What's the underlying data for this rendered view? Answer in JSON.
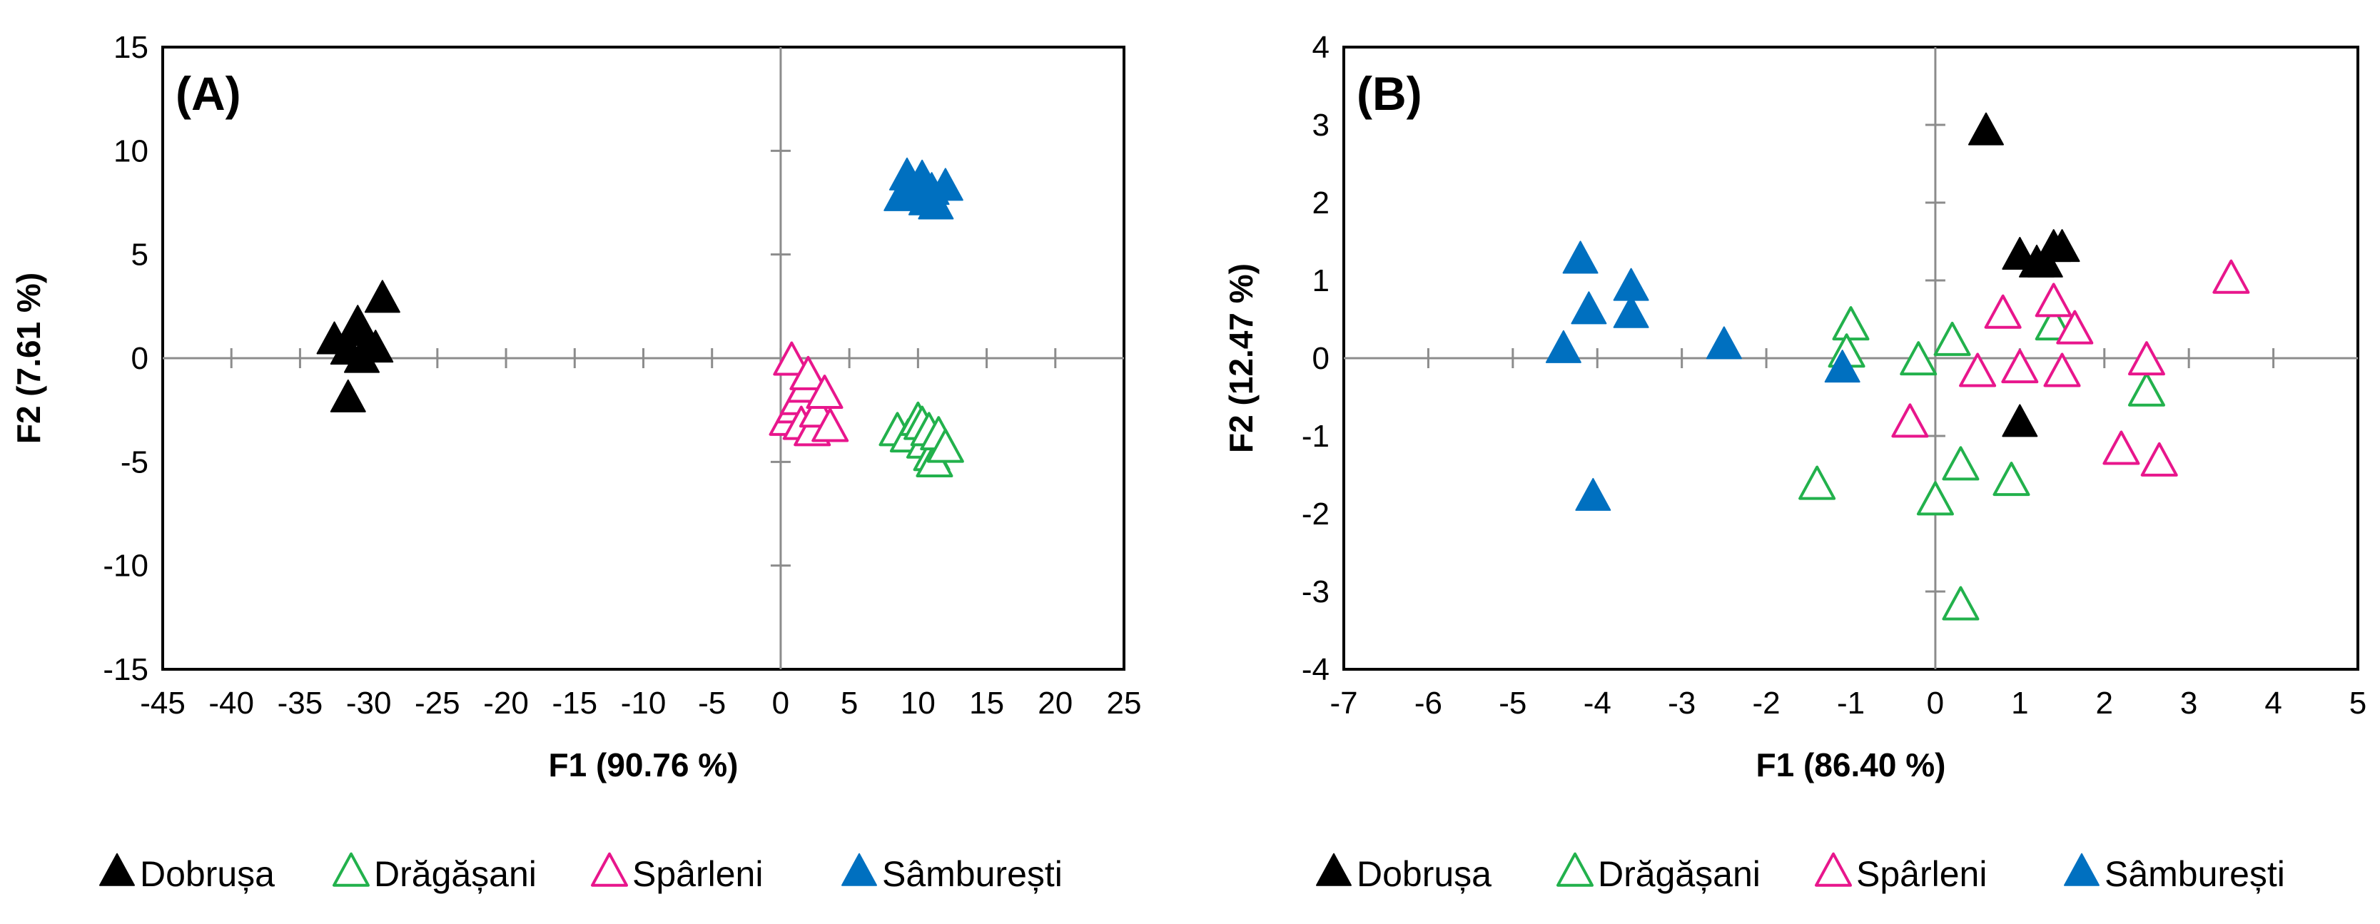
{
  "chart_data": [
    {
      "type": "scatter",
      "panel_label": "(A)",
      "xlabel": "F1 (90.76 %)",
      "ylabel": "F2 (7.61 %)",
      "xlim": [
        -45,
        25
      ],
      "ylim": [
        -15,
        15
      ],
      "x_ticks": [
        -45,
        -40,
        -35,
        -30,
        -25,
        -20,
        -15,
        -10,
        -5,
        0,
        5,
        10,
        15,
        20,
        25
      ],
      "y_ticks": [
        -15,
        -10,
        -5,
        0,
        5,
        10,
        15
      ],
      "grid": false,
      "series": [
        {
          "name": "Dobrușa",
          "marker": "filled-triangle",
          "color": "#000000",
          "points": [
            [
              -32.5,
              0.8
            ],
            [
              -31.5,
              0.3
            ],
            [
              -31,
              1.2
            ],
            [
              -30.8,
              1.6
            ],
            [
              -30.5,
              -0.1
            ],
            [
              -30,
              0.6
            ],
            [
              -29.5,
              0.4
            ],
            [
              -29,
              2.8
            ],
            [
              -31.5,
              -2.0
            ]
          ]
        },
        {
          "name": "Drăgășani",
          "marker": "open-triangle",
          "color": "#22b14c",
          "points": [
            [
              8.5,
              -3.6
            ],
            [
              9.3,
              -3.9
            ],
            [
              10,
              -3.1
            ],
            [
              10.3,
              -3.3
            ],
            [
              10.5,
              -4.2
            ],
            [
              10.8,
              -3.6
            ],
            [
              11,
              -4.8
            ],
            [
              11.2,
              -5.1
            ],
            [
              11.5,
              -3.8
            ],
            [
              12,
              -4.4
            ]
          ]
        },
        {
          "name": "Spârleni",
          "marker": "open-triangle",
          "color": "#e8168c",
          "points": [
            [
              0.8,
              -0.2
            ],
            [
              0.5,
              -3.1
            ],
            [
              1,
              -2.5
            ],
            [
              1.3,
              -2.1
            ],
            [
              1.5,
              -3.3
            ],
            [
              1.8,
              -1.5
            ],
            [
              2,
              -0.9
            ],
            [
              2.3,
              -3.6
            ],
            [
              2.7,
              -2.7
            ],
            [
              3.2,
              -1.8
            ],
            [
              3.6,
              -3.4
            ]
          ]
        },
        {
          "name": "Sâmburești",
          "marker": "filled-triangle",
          "color": "#0070c0",
          "points": [
            [
              8.8,
              7.7
            ],
            [
              9.2,
              8.7
            ],
            [
              9.6,
              8.2
            ],
            [
              10,
              7.8
            ],
            [
              10.3,
              8.6
            ],
            [
              10.6,
              7.5
            ],
            [
              11,
              8.0
            ],
            [
              11.3,
              7.3
            ],
            [
              12,
              8.2
            ]
          ]
        }
      ]
    },
    {
      "type": "scatter",
      "panel_label": "(B)",
      "xlabel": "F1 (86.40 %)",
      "ylabel": "F2 (12.47 %)",
      "xlim": [
        -7,
        5
      ],
      "ylim": [
        -4,
        4
      ],
      "x_ticks": [
        -7,
        -6,
        -5,
        -4,
        -3,
        -2,
        -1,
        0,
        1,
        2,
        3,
        4,
        5
      ],
      "y_ticks": [
        -4,
        -3,
        -2,
        -1,
        0,
        1,
        2,
        3,
        4
      ],
      "grid": false,
      "series": [
        {
          "name": "Dobrușa",
          "marker": "filled-triangle",
          "color": "#000000",
          "points": [
            [
              0.6,
              2.9
            ],
            [
              1.0,
              1.3
            ],
            [
              1.2,
              1.2
            ],
            [
              1.4,
              1.4
            ],
            [
              1.5,
              1.4
            ],
            [
              1.3,
              1.2
            ],
            [
              1.0,
              -0.85
            ]
          ]
        },
        {
          "name": "Drăgășani",
          "marker": "open-triangle",
          "color": "#22b14c",
          "points": [
            [
              -1.4,
              -1.65
            ],
            [
              -1.0,
              0.4
            ],
            [
              -1.05,
              0.05
            ],
            [
              -0.2,
              -0.05
            ],
            [
              0,
              -1.85
            ],
            [
              0.2,
              0.2
            ],
            [
              0.3,
              -1.4
            ],
            [
              0.3,
              -3.2
            ],
            [
              0.9,
              -1.6
            ],
            [
              1.4,
              0.4
            ],
            [
              2.5,
              -0.45
            ]
          ]
        },
        {
          "name": "Spârleni",
          "marker": "open-triangle",
          "color": "#e8168c",
          "points": [
            [
              -0.3,
              -0.85
            ],
            [
              0.5,
              -0.2
            ],
            [
              0.8,
              0.55
            ],
            [
              1.0,
              -0.15
            ],
            [
              1.4,
              0.7
            ],
            [
              1.5,
              -0.2
            ],
            [
              1.65,
              0.35
            ],
            [
              2.2,
              -1.2
            ],
            [
              2.5,
              -0.05
            ],
            [
              2.65,
              -1.35
            ],
            [
              3.5,
              1.0
            ]
          ]
        },
        {
          "name": "Sâmburești",
          "marker": "filled-triangle",
          "color": "#0070c0",
          "points": [
            [
              -4.4,
              0.1
            ],
            [
              -4.2,
              1.25
            ],
            [
              -4.1,
              0.6
            ],
            [
              -4.05,
              -1.8
            ],
            [
              -3.6,
              0.9
            ],
            [
              -3.6,
              0.55
            ],
            [
              -2.5,
              0.15
            ],
            [
              -1.1,
              -0.15
            ]
          ]
        }
      ]
    }
  ],
  "legend": {
    "items": [
      {
        "label": "Dobrușa",
        "marker": "filled-triangle",
        "color": "#000000"
      },
      {
        "label": "Drăgășani",
        "marker": "open-triangle",
        "color": "#22b14c"
      },
      {
        "label": "Spârleni",
        "marker": "open-triangle",
        "color": "#e8168c"
      },
      {
        "label": "Sâmburești",
        "marker": "filled-triangle",
        "color": "#0070c0"
      }
    ]
  },
  "colors": {
    "axis_center": "#8c8c8c",
    "frame": "#000000"
  }
}
